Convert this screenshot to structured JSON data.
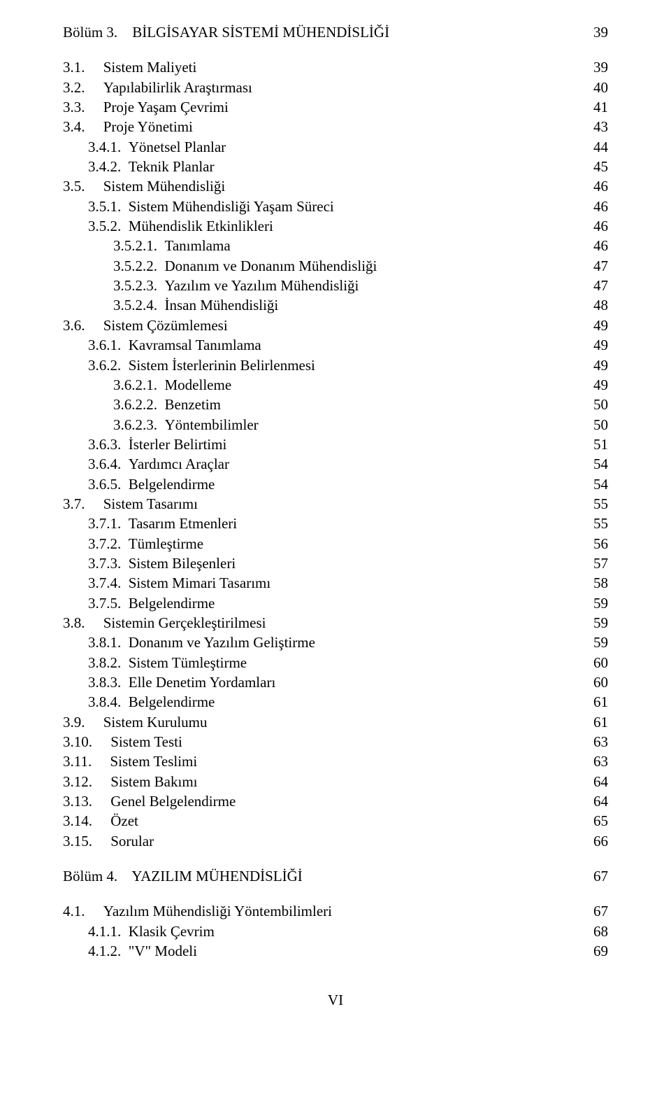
{
  "chapter3": {
    "heading_prefix": "Bölüm 3.",
    "heading_title": "BİLGİSAYAR SİSTEMİ MÜHENDİSLİĞİ",
    "heading_page": "39",
    "items": [
      {
        "num": "3.1.",
        "title": "Sistem Maliyeti",
        "page": "39",
        "indent": 1
      },
      {
        "num": "3.2.",
        "title": "Yapılabilirlik Araştırması",
        "page": "40",
        "indent": 1
      },
      {
        "num": "3.3.",
        "title": "Proje Yaşam Çevrimi",
        "page": "41",
        "indent": 1
      },
      {
        "num": "3.4.",
        "title": "Proje Yönetimi",
        "page": "43",
        "indent": 1
      },
      {
        "num": "3.4.1.",
        "title": "Yönetsel Planlar",
        "page": "44",
        "indent": 2
      },
      {
        "num": "3.4.2.",
        "title": "Teknik Planlar",
        "page": "45",
        "indent": 2
      },
      {
        "num": "3.5.",
        "title": "Sistem Mühendisliği",
        "page": "46",
        "indent": 1
      },
      {
        "num": "3.5.1.",
        "title": "Sistem Mühendisliği Yaşam Süreci",
        "page": "46",
        "indent": 2
      },
      {
        "num": "3.5.2.",
        "title": "Mühendislik Etkinlikleri",
        "page": "46",
        "indent": 2
      },
      {
        "num": "3.5.2.1.",
        "title": "Tanımlama",
        "page": "46",
        "indent": 3
      },
      {
        "num": "3.5.2.2.",
        "title": "Donanım ve Donanım Mühendisliği",
        "page": "47",
        "indent": 3
      },
      {
        "num": "3.5.2.3.",
        "title": "Yazılım ve Yazılım Mühendisliği",
        "page": "47",
        "indent": 3
      },
      {
        "num": "3.5.2.4.",
        "title": "İnsan Mühendisliği",
        "page": "48",
        "indent": 3
      },
      {
        "num": "3.6.",
        "title": "Sistem Çözümlemesi",
        "page": "49",
        "indent": 1
      },
      {
        "num": "3.6.1.",
        "title": "Kavramsal Tanımlama",
        "page": "49",
        "indent": 2
      },
      {
        "num": "3.6.2.",
        "title": "Sistem İsterlerinin Belirlenmesi",
        "page": "49",
        "indent": 2
      },
      {
        "num": "3.6.2.1.",
        "title": "Modelleme",
        "page": "49",
        "indent": 3
      },
      {
        "num": "3.6.2.2.",
        "title": "Benzetim",
        "page": "50",
        "indent": 3
      },
      {
        "num": "3.6.2.3.",
        "title": "Yöntembilimler",
        "page": "50",
        "indent": 3
      },
      {
        "num": "3.6.3.",
        "title": "İsterler Belirtimi",
        "page": "51",
        "indent": 2
      },
      {
        "num": "3.6.4.",
        "title": "Yardımcı Araçlar",
        "page": "54",
        "indent": 2
      },
      {
        "num": "3.6.5.",
        "title": "Belgelendirme",
        "page": "54",
        "indent": 2
      },
      {
        "num": "3.7.",
        "title": "Sistem Tasarımı",
        "page": "55",
        "indent": 1
      },
      {
        "num": "3.7.1.",
        "title": "Tasarım Etmenleri",
        "page": "55",
        "indent": 2
      },
      {
        "num": "3.7.2.",
        "title": "Tümleştirme",
        "page": "56",
        "indent": 2
      },
      {
        "num": "3.7.3.",
        "title": "Sistem Bileşenleri",
        "page": "57",
        "indent": 2
      },
      {
        "num": "3.7.4.",
        "title": "Sistem Mimari Tasarımı",
        "page": "58",
        "indent": 2
      },
      {
        "num": "3.7.5.",
        "title": "Belgelendirme",
        "page": "59",
        "indent": 2
      },
      {
        "num": "3.8.",
        "title": "Sistemin Gerçekleştirilmesi",
        "page": "59",
        "indent": 1
      },
      {
        "num": "3.8.1.",
        "title": "Donanım ve Yazılım Geliştirme",
        "page": "59",
        "indent": 2
      },
      {
        "num": "3.8.2.",
        "title": "Sistem Tümleştirme",
        "page": "60",
        "indent": 2
      },
      {
        "num": "3.8.3.",
        "title": "Elle Denetim Yordamları",
        "page": "60",
        "indent": 2
      },
      {
        "num": "3.8.4.",
        "title": "Belgelendirme",
        "page": "61",
        "indent": 2
      },
      {
        "num": "3.9.",
        "title": "Sistem Kurulumu",
        "page": "61",
        "indent": 1
      },
      {
        "num": "3.10.",
        "title": "Sistem Testi",
        "page": "63",
        "indent": 1
      },
      {
        "num": "3.11.",
        "title": "Sistem Teslimi",
        "page": "63",
        "indent": 1
      },
      {
        "num": "3.12.",
        "title": "Sistem Bakımı",
        "page": "64",
        "indent": 1
      },
      {
        "num": "3.13.",
        "title": "Genel Belgelendirme",
        "page": "64",
        "indent": 1
      },
      {
        "num": "3.14.",
        "title": "Özet",
        "page": "65",
        "indent": 1
      },
      {
        "num": "3.15.",
        "title": "Sorular",
        "page": "66",
        "indent": 1
      }
    ]
  },
  "chapter4": {
    "heading_prefix": "Bölüm 4.",
    "heading_title": "YAZILIM MÜHENDİSLİĞİ",
    "heading_page": "67",
    "items": [
      {
        "num": "4.1.",
        "title": "Yazılım Mühendisliği Yöntembilimleri",
        "page": "67",
        "indent": 1
      },
      {
        "num": "4.1.1.",
        "title": "Klasik Çevrim",
        "page": "68",
        "indent": 2
      },
      {
        "num": "4.1.2.",
        "title": "\"V\" Modeli",
        "page": "69",
        "indent": 2
      }
    ]
  },
  "footer_page_num": "VI"
}
